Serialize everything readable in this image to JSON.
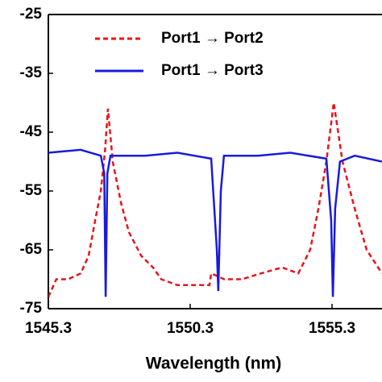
{
  "chart_data": {
    "type": "line",
    "x_label": "Wavelength (nm)",
    "xlim": [
      1545.3,
      1557.1
    ],
    "xticks": [
      1545.3,
      1550.3,
      1555.3
    ],
    "ylim": [
      -75,
      -25
    ],
    "yticks": [
      -25,
      -35,
      -45,
      -55,
      -65,
      -75
    ],
    "legend": "top",
    "series": [
      {
        "name": "Port1 → Port2",
        "color": "#e8141b",
        "dash": true,
        "x": [
          1545.3,
          1545.58,
          1546.0,
          1546.44,
          1546.72,
          1546.95,
          1547.15,
          1547.3,
          1547.4,
          1547.57,
          1547.86,
          1548.14,
          1548.57,
          1548.99,
          1549.28,
          1549.85,
          1550.4,
          1550.98,
          1551.04,
          1551.5,
          1552.12,
          1552.8,
          1553.54,
          1554.11,
          1554.53,
          1554.82,
          1555.1,
          1555.36,
          1555.67,
          1556.1,
          1556.52,
          1557.06
        ],
        "values": [
          -73,
          -70,
          -70,
          -69,
          -66,
          -60,
          -55,
          -48,
          -41,
          -50,
          -57,
          -62,
          -66,
          -68,
          -70,
          -71,
          -71,
          -71,
          -69,
          -70,
          -70,
          -69,
          -68,
          -69,
          -65,
          -58,
          -50,
          -40,
          -50,
          -58,
          -65,
          -69
        ]
      },
      {
        "name": "Port1 → Port3",
        "color": "#1a1adb",
        "dash": false,
        "x": [
          1545.3,
          1546.44,
          1547.15,
          1547.27,
          1547.32,
          1547.38,
          1547.49,
          1548.71,
          1549.85,
          1551.04,
          1551.24,
          1551.29,
          1551.38,
          1551.49,
          1552.69,
          1553.83,
          1555.1,
          1555.27,
          1555.33,
          1555.41,
          1555.58,
          1556.1,
          1557.06
        ],
        "values": [
          -48.5,
          -48,
          -49,
          -52,
          -73,
          -52,
          -49,
          -49,
          -48.5,
          -49.5,
          -65,
          -72,
          -55,
          -49,
          -49,
          -48.5,
          -49.5,
          -60,
          -73,
          -58,
          -50,
          -49,
          -50
        ]
      }
    ]
  }
}
